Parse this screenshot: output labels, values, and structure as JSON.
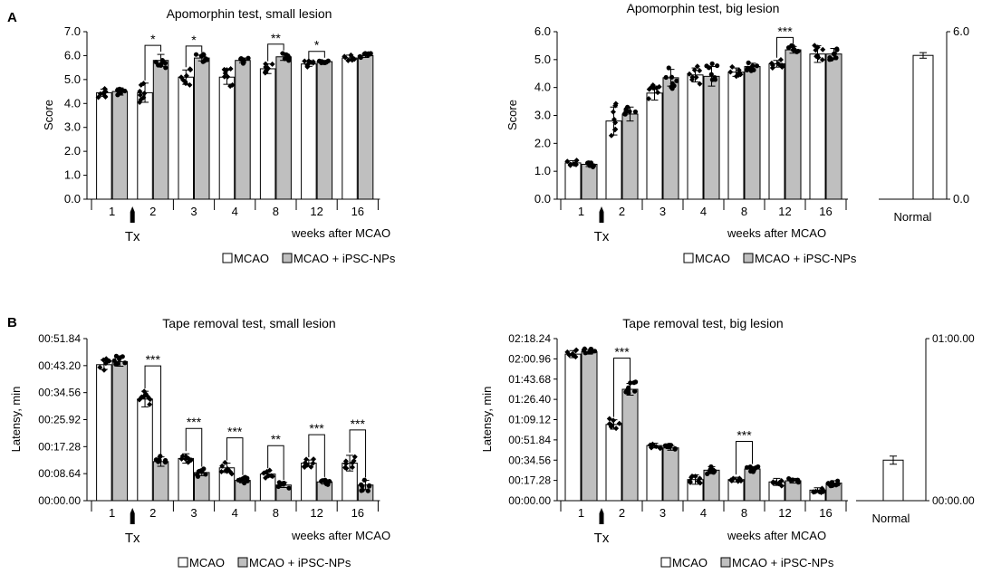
{
  "panel_labels": [
    "A",
    "B"
  ],
  "legend": {
    "mcao": "MCAO",
    "ips": "MCAO + iPSC-NPs",
    "mcao_color": "#ffffff",
    "ips_color": "#bfbfbf"
  },
  "chart_data": [
    {
      "type": "bar",
      "title": "Apomorphin test, small lesion",
      "ylabel": "Score",
      "xlabel": "weeks after MCAO",
      "treatment_marker": "Tx",
      "categories": [
        "1",
        "2",
        "3",
        "4",
        "8",
        "12",
        "16"
      ],
      "yticks": [
        "0.0",
        "1.0",
        "2.0",
        "3.0",
        "4.0",
        "5.0",
        "6.0",
        "7.0"
      ],
      "ylim": [
        0,
        7
      ],
      "series": [
        {
          "name": "MCAO",
          "values": [
            4.45,
            4.45,
            5.1,
            5.1,
            5.45,
            5.65,
            5.9
          ],
          "errors": [
            0.15,
            0.4,
            0.3,
            0.3,
            0.2,
            0.1,
            0.12
          ]
        },
        {
          "name": "MCAO + iPSC-NPs",
          "values": [
            4.5,
            5.8,
            5.9,
            5.8,
            5.95,
            5.75,
            6.0
          ],
          "errors": [
            0.15,
            0.25,
            0.12,
            0.1,
            0.15,
            0.05,
            0.08
          ]
        }
      ],
      "significance": [
        {
          "category": "2",
          "label": "*"
        },
        {
          "category": "3",
          "label": "*"
        },
        {
          "category": "8",
          "label": "**"
        },
        {
          "category": "12",
          "label": "*"
        }
      ]
    },
    {
      "type": "bar",
      "title": "Apomorphin test, big lesion",
      "ylabel": "Score",
      "xlabel": "weeks after MCAO",
      "treatment_marker": "Tx",
      "categories": [
        "1",
        "2",
        "3",
        "4",
        "8",
        "12",
        "16"
      ],
      "yticks": [
        "0.0",
        "1.0",
        "2.0",
        "3.0",
        "4.0",
        "5.0",
        "6.0"
      ],
      "ylim": [
        0,
        6
      ],
      "series": [
        {
          "name": "MCAO",
          "values": [
            1.3,
            2.8,
            3.8,
            4.45,
            4.55,
            4.85,
            5.2
          ],
          "errors": [
            0.08,
            0.5,
            0.25,
            0.25,
            0.15,
            0.12,
            0.3
          ]
        },
        {
          "name": "MCAO + iPSC-NPs",
          "values": [
            1.25,
            3.05,
            4.35,
            4.4,
            4.75,
            5.35,
            5.2
          ],
          "errors": [
            0.08,
            0.25,
            0.3,
            0.35,
            0.12,
            0.12,
            0.2
          ]
        }
      ],
      "significance": [
        {
          "category": "12",
          "label": "***"
        }
      ],
      "normal": {
        "label": "Normal",
        "value": 5.15,
        "error": 0.1,
        "yticks": [
          "0.0",
          "6.0"
        ]
      }
    },
    {
      "type": "bar",
      "title": "Tape removal test, small lesion",
      "ylabel": "Latensy, min",
      "xlabel": "weeks after MCAO",
      "treatment_marker": "Tx",
      "unit": "seconds",
      "categories": [
        "1",
        "2",
        "3",
        "4",
        "8",
        "12",
        "16"
      ],
      "yticks": [
        "00:00.00",
        "00:08.64",
        "00:17.28",
        "00:25.92",
        "00:34.56",
        "00:43.20",
        "00:51.84"
      ],
      "ylim": [
        0,
        51.84
      ],
      "series": [
        {
          "name": "MCAO",
          "values": [
            43.5,
            32.5,
            13.5,
            10.5,
            8.5,
            12.0,
            12.0
          ],
          "errors": [
            1.5,
            2.5,
            1.5,
            1.5,
            1.0,
            1.0,
            2.5
          ]
        },
        {
          "name": "MCAO + iPSC-NPs",
          "values": [
            44.5,
            12.5,
            9.0,
            6.5,
            5.0,
            6.0,
            5.0
          ],
          "errors": [
            1.5,
            1.5,
            1.0,
            0.8,
            0.8,
            0.7,
            1.5
          ]
        }
      ],
      "significance": [
        {
          "category": "2",
          "label": "***"
        },
        {
          "category": "3",
          "label": "***"
        },
        {
          "category": "4",
          "label": "***"
        },
        {
          "category": "8",
          "label": "**"
        },
        {
          "category": "12",
          "label": "***"
        },
        {
          "category": "16",
          "label": "***"
        }
      ]
    },
    {
      "type": "bar",
      "title": "Tape removal test, big lesion",
      "ylabel": "Latensy, min",
      "xlabel": "weeks after MCAO",
      "treatment_marker": "Tx",
      "unit": "seconds",
      "categories": [
        "1",
        "2",
        "3",
        "4",
        "8",
        "12",
        "16"
      ],
      "yticks": [
        "00:00.00",
        "00:17.28",
        "00:34.56",
        "00:51.84",
        "01:09.12",
        "01:26.40",
        "01:43.68",
        "02:00.96",
        "02:18.24"
      ],
      "ylim": [
        0,
        138.24
      ],
      "series": [
        {
          "name": "MCAO",
          "values": [
            125,
            65,
            47,
            18,
            18,
            16,
            9
          ],
          "errors": [
            3,
            4,
            2,
            4,
            2,
            3,
            2
          ]
        },
        {
          "name": "MCAO + iPSC-NPs",
          "values": [
            127,
            95,
            45,
            26,
            27,
            17,
            15
          ],
          "errors": [
            2,
            5,
            2,
            3,
            2,
            2,
            2
          ]
        }
      ],
      "significance": [
        {
          "category": "2",
          "label": "***"
        },
        {
          "category": "8",
          "label": "***"
        }
      ],
      "normal": {
        "label": "Normal",
        "value": 15,
        "error": 1.5,
        "ymax": 60,
        "yticks": [
          "00:00.00",
          "01:00.00"
        ]
      }
    }
  ]
}
